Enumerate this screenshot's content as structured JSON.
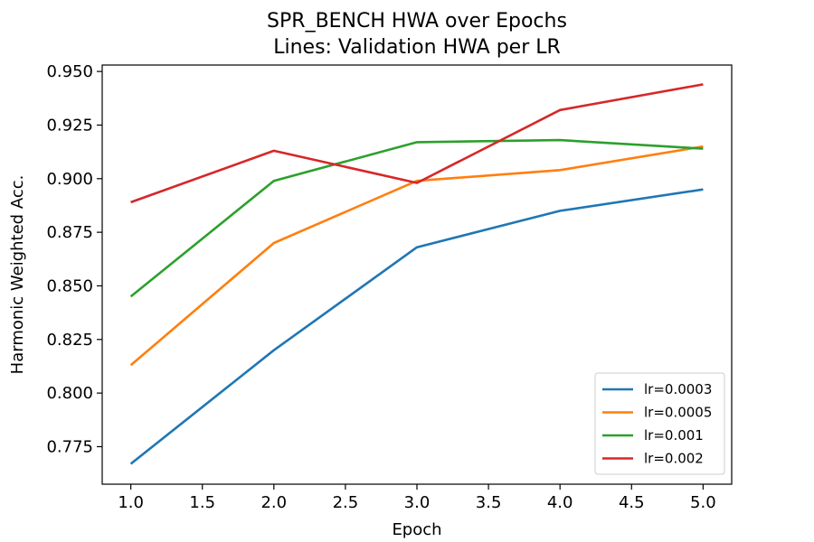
{
  "chart_data": {
    "type": "line",
    "title": "SPR_BENCH HWA over Epochs",
    "subtitle": "Lines: Validation HWA per LR",
    "xlabel": "Epoch",
    "ylabel": "Harmonic Weighted Acc.",
    "xlim": [
      0.8,
      5.2
    ],
    "ylim": [
      0.7575,
      0.953
    ],
    "xticks": [
      "1.0",
      "1.5",
      "2.0",
      "2.5",
      "3.0",
      "3.5",
      "4.0",
      "4.5",
      "5.0"
    ],
    "yticks": [
      "0.775",
      "0.800",
      "0.825",
      "0.850",
      "0.875",
      "0.900",
      "0.925",
      "0.950"
    ],
    "x": [
      1,
      2,
      3,
      4,
      5
    ],
    "grid": false,
    "legend_position": "lower-right",
    "series": [
      {
        "name": "lr=0.0003",
        "color": "#1f77b4",
        "values": [
          0.767,
          0.82,
          0.868,
          0.885,
          0.895
        ]
      },
      {
        "name": "lr=0.0005",
        "color": "#ff7f0e",
        "values": [
          0.813,
          0.87,
          0.899,
          0.904,
          0.915
        ]
      },
      {
        "name": "lr=0.001",
        "color": "#2ca02c",
        "values": [
          0.845,
          0.899,
          0.917,
          0.918,
          0.914
        ]
      },
      {
        "name": "lr=0.002",
        "color": "#d62728",
        "values": [
          0.889,
          0.913,
          0.898,
          0.932,
          0.944
        ]
      }
    ]
  }
}
